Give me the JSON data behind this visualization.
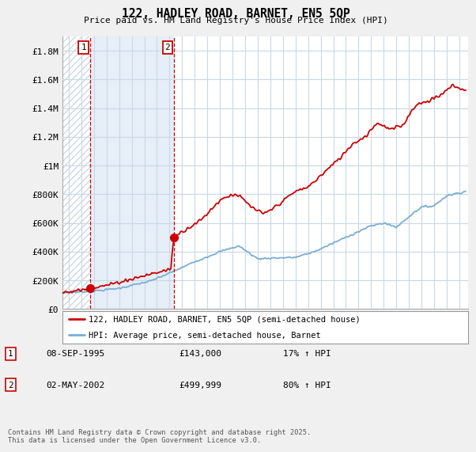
{
  "title": "122, HADLEY ROAD, BARNET, EN5 5QP",
  "subtitle": "Price paid vs. HM Land Registry's House Price Index (HPI)",
  "legend_label_red": "122, HADLEY ROAD, BARNET, EN5 5QP (semi-detached house)",
  "legend_label_blue": "HPI: Average price, semi-detached house, Barnet",
  "annotation1_date": "08-SEP-1995",
  "annotation1_price": "£143,000",
  "annotation1_hpi": "17% ↑ HPI",
  "annotation2_date": "02-MAY-2002",
  "annotation2_price": "£499,999",
  "annotation2_hpi": "80% ↑ HPI",
  "footer": "Contains HM Land Registry data © Crown copyright and database right 2025.\nThis data is licensed under the Open Government Licence v3.0.",
  "ylim": [
    0,
    1900000
  ],
  "yticks": [
    0,
    200000,
    400000,
    600000,
    800000,
    1000000,
    1200000,
    1400000,
    1600000,
    1800000
  ],
  "ytick_labels": [
    "£0",
    "£200K",
    "£400K",
    "£600K",
    "£800K",
    "£1M",
    "£1.2M",
    "£1.4M",
    "£1.6M",
    "£1.8M"
  ],
  "background_color": "#f0f0f0",
  "plot_bg_color": "#ffffff",
  "grid_color": "#c8d8e8",
  "red_color": "#cc0000",
  "blue_color": "#7aadd4",
  "hatch_color": "#d0d8e0",
  "shade_color": "#dce8f4",
  "anno1_x_year": 1995.67,
  "anno2_x_year": 2002.33,
  "anno1_y": 143000,
  "anno2_y": 499999,
  "xmin": 1993.5,
  "xmax": 2025.7
}
